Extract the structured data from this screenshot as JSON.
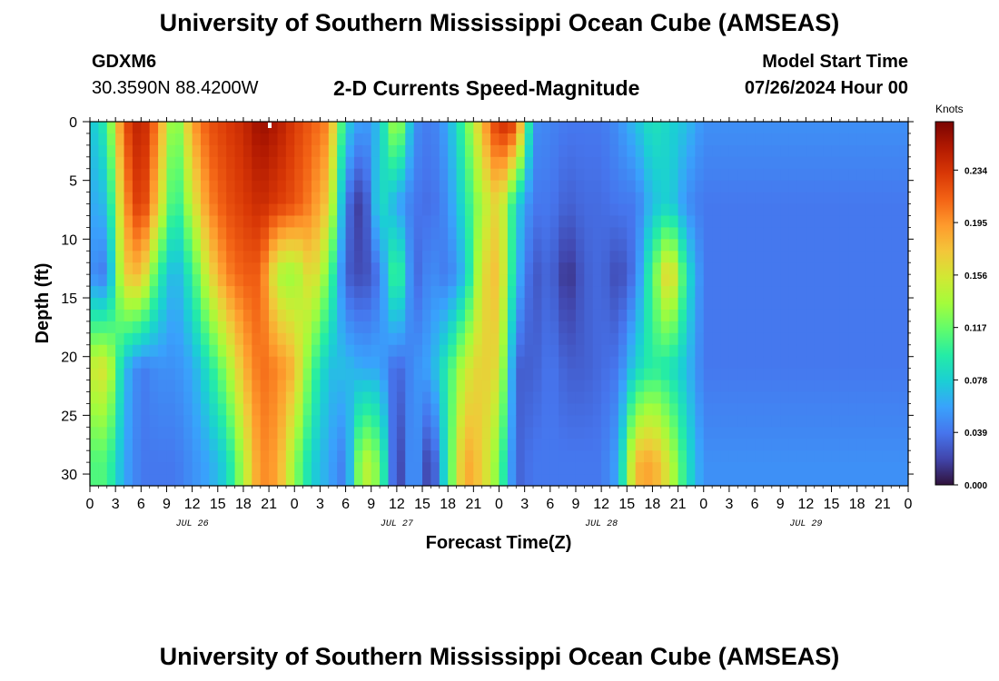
{
  "header": {
    "title": "University of Southern Mississippi Ocean Cube (AMSEAS)",
    "station": "GDXM6",
    "coordinates": "30.3590N  88.4200W",
    "subtitle": "2-D Currents Speed-Magnitude",
    "model_start_label": "Model Start Time",
    "model_start_value": "07/26/2024 Hour 00"
  },
  "footer": {
    "title": "University of Southern Mississippi Ocean Cube (AMSEAS)"
  },
  "chart_data": {
    "type": "heatmap",
    "xlabel": "Forecast Time(Z)",
    "ylabel": "Depth (ft)",
    "x_range_hours": [
      0,
      96
    ],
    "y_range": [
      0,
      31
    ],
    "y_ticks": [
      0,
      5,
      10,
      15,
      20,
      25,
      30
    ],
    "x_tick_labels": [
      "0",
      "3",
      "6",
      "9",
      "12",
      "15",
      "18",
      "21",
      "0",
      "3",
      "6",
      "9",
      "12",
      "15",
      "18",
      "21",
      "0",
      "3",
      "6",
      "9",
      "12",
      "15",
      "18",
      "21",
      "0",
      "3",
      "6",
      "9",
      "12",
      "15",
      "18",
      "21",
      "0"
    ],
    "date_labels": [
      "JUL 26",
      "JUL 27",
      "JUL 28",
      "JUL 29"
    ],
    "colorbar": {
      "units": "Knots",
      "min": 0,
      "max": 0.27,
      "ticks": [
        "0.000",
        "0.039",
        "0.078",
        "0.117",
        "0.156",
        "0.195",
        "0.234"
      ],
      "colors": [
        "#30123b",
        "#4145ab",
        "#4675ed",
        "#39a2fc",
        "#1bcfd4",
        "#24eca6",
        "#61fc6c",
        "#a4fc3b",
        "#d1e834",
        "#f3c63a",
        "#fe9b2d",
        "#f36315",
        "#d93806",
        "#b11901",
        "#7a0402"
      ]
    },
    "columns": [
      {
        "h": 0,
        "top": 0.07,
        "up": 0.06,
        "mid": 0.05,
        "low": 0.15,
        "bot": 0.11
      },
      {
        "h": 2,
        "top": 0.1,
        "up": 0.07,
        "mid": 0.04,
        "low": 0.16,
        "bot": 0.11
      },
      {
        "h": 4,
        "top": 0.22,
        "up": 0.19,
        "mid": 0.17,
        "low": 0.07,
        "bot": 0.06
      },
      {
        "h": 6,
        "top": 0.25,
        "up": 0.24,
        "mid": 0.18,
        "low": 0.04,
        "bot": 0.04
      },
      {
        "h": 8,
        "top": 0.2,
        "up": 0.17,
        "mid": 0.1,
        "low": 0.05,
        "bot": 0.04
      },
      {
        "h": 10,
        "top": 0.11,
        "up": 0.09,
        "mid": 0.06,
        "low": 0.05,
        "bot": 0.04
      },
      {
        "h": 12,
        "top": 0.19,
        "up": 0.15,
        "mid": 0.1,
        "low": 0.06,
        "bot": 0.05
      },
      {
        "h": 14,
        "top": 0.22,
        "up": 0.2,
        "mid": 0.16,
        "low": 0.09,
        "bot": 0.06
      },
      {
        "h": 16,
        "top": 0.23,
        "up": 0.22,
        "mid": 0.2,
        "low": 0.13,
        "bot": 0.08
      },
      {
        "h": 18,
        "top": 0.24,
        "up": 0.23,
        "mid": 0.215,
        "low": 0.18,
        "bot": 0.14
      },
      {
        "h": 20,
        "top": 0.26,
        "up": 0.24,
        "mid": 0.215,
        "low": 0.21,
        "bot": 0.2
      },
      {
        "h": 22,
        "top": 0.25,
        "up": 0.23,
        "mid": 0.14,
        "low": 0.2,
        "bot": 0.19
      },
      {
        "h": 24,
        "top": 0.23,
        "up": 0.22,
        "mid": 0.13,
        "low": 0.18,
        "bot": 0.13
      },
      {
        "h": 26,
        "top": 0.215,
        "up": 0.2,
        "mid": 0.17,
        "low": 0.11,
        "bot": 0.08
      },
      {
        "h": 28,
        "top": 0.2,
        "up": 0.17,
        "mid": 0.12,
        "low": 0.07,
        "bot": 0.06
      },
      {
        "h": 30,
        "top": 0.08,
        "up": 0.04,
        "mid": 0.03,
        "low": 0.07,
        "bot": 0.04
      },
      {
        "h": 32,
        "top": 0.05,
        "up": 0.01,
        "mid": 0.02,
        "low": 0.06,
        "bot": 0.15
      },
      {
        "h": 34,
        "top": 0.07,
        "up": 0.09,
        "mid": 0.04,
        "low": 0.06,
        "bot": 0.12
      },
      {
        "h": 36,
        "top": 0.15,
        "up": 0.06,
        "mid": 0.12,
        "low": 0.03,
        "bot": 0.01
      },
      {
        "h": 38,
        "top": 0.05,
        "up": 0.04,
        "mid": 0.03,
        "low": 0.05,
        "bot": 0.06
      },
      {
        "h": 40,
        "top": 0.04,
        "up": 0.035,
        "mid": 0.05,
        "low": 0.06,
        "bot": 0.01
      },
      {
        "h": 42,
        "top": 0.06,
        "up": 0.05,
        "mid": 0.04,
        "low": 0.1,
        "bot": 0.1
      },
      {
        "h": 44,
        "top": 0.11,
        "up": 0.09,
        "mid": 0.07,
        "low": 0.15,
        "bot": 0.19
      },
      {
        "h": 46,
        "top": 0.18,
        "up": 0.14,
        "mid": 0.16,
        "low": 0.17,
        "bot": 0.17
      },
      {
        "h": 48,
        "top": 0.24,
        "up": 0.17,
        "mid": 0.18,
        "low": 0.16,
        "bot": 0.12
      },
      {
        "h": 50,
        "top": 0.23,
        "up": 0.08,
        "mid": 0.07,
        "low": 0.03,
        "bot": 0.03
      },
      {
        "h": 52,
        "top": 0.05,
        "up": 0.04,
        "mid": 0.025,
        "low": 0.03,
        "bot": 0.04
      },
      {
        "h": 54,
        "top": 0.045,
        "up": 0.04,
        "mid": 0.035,
        "low": 0.04,
        "bot": 0.04
      },
      {
        "h": 56,
        "top": 0.04,
        "up": 0.03,
        "mid": 0.01,
        "low": 0.03,
        "bot": 0.04
      },
      {
        "h": 58,
        "top": 0.04,
        "up": 0.035,
        "mid": 0.03,
        "low": 0.03,
        "bot": 0.04
      },
      {
        "h": 60,
        "top": 0.04,
        "up": 0.035,
        "mid": 0.035,
        "low": 0.035,
        "bot": 0.04
      },
      {
        "h": 62,
        "top": 0.05,
        "up": 0.04,
        "mid": 0.02,
        "low": 0.04,
        "bot": 0.06
      },
      {
        "h": 64,
        "top": 0.07,
        "up": 0.04,
        "mid": 0.04,
        "low": 0.08,
        "bot": 0.18
      },
      {
        "h": 66,
        "top": 0.09,
        "up": 0.07,
        "mid": 0.11,
        "low": 0.1,
        "bot": 0.19
      },
      {
        "h": 68,
        "top": 0.08,
        "up": 0.08,
        "mid": 0.18,
        "low": 0.09,
        "bot": 0.15
      },
      {
        "h": 70,
        "top": 0.07,
        "up": 0.05,
        "mid": 0.09,
        "low": 0.07,
        "bot": 0.09
      },
      {
        "h": 72,
        "top": 0.05,
        "up": 0.04,
        "mid": 0.04,
        "low": 0.04,
        "bot": 0.05
      }
    ]
  }
}
